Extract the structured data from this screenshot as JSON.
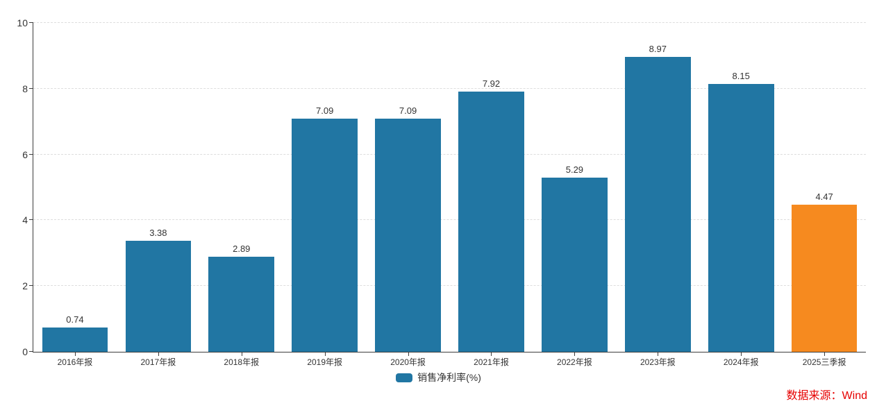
{
  "chart_data": {
    "type": "bar",
    "title": "",
    "xlabel": "",
    "ylabel": "",
    "categories": [
      "2016年报",
      "2017年报",
      "2018年报",
      "2019年报",
      "2020年报",
      "2021年报",
      "2022年报",
      "2023年报",
      "2024年报",
      "2025三季报"
    ],
    "series": [
      {
        "name": "销售净利率(%)",
        "values": [
          0.74,
          3.38,
          2.89,
          7.09,
          7.09,
          7.92,
          5.29,
          8.97,
          8.15,
          4.47
        ]
      }
    ],
    "ylim": [
      0,
      10
    ],
    "y_ticks": [
      0,
      2,
      4,
      6,
      8,
      10
    ],
    "grid": "horizontal-dashed",
    "legend_position": "bottom-center",
    "highlight_index": 9,
    "value_labels_shown": true
  },
  "legend": {
    "label": "销售净利率(%)"
  },
  "source": {
    "text": "数据来源：Wind"
  },
  "colors": {
    "bar_default": "#2176A3",
    "bar_highlight": "#F68A1F",
    "axis": "#3c3c3c",
    "gridline": "#dddddd",
    "text": "#333333",
    "source_text": "#E60000"
  }
}
